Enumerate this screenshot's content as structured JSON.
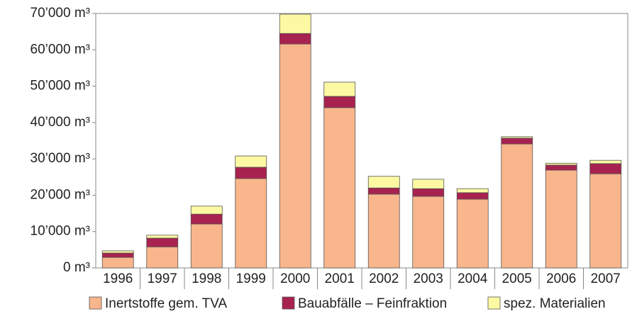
{
  "chart_data": {
    "type": "stacked_bar",
    "categories": [
      "1996",
      "1997",
      "1998",
      "1999",
      "2000",
      "2001",
      "2002",
      "2003",
      "2004",
      "2005",
      "2006",
      "2007"
    ],
    "series": [
      {
        "name": "Inertstoffe gem. TVA",
        "color": "#f9b58b",
        "values": [
          2900,
          5800,
          12100,
          24600,
          61600,
          44100,
          20300,
          19700,
          18900,
          34100,
          26900,
          25900
        ]
      },
      {
        "name": "Bauabfälle – Feinfraktion",
        "color": "#a8224f",
        "values": [
          1200,
          2400,
          2700,
          3100,
          2900,
          3100,
          1700,
          2100,
          1800,
          1600,
          1400,
          2800
        ]
      },
      {
        "name": "spez. Materialien",
        "color": "#fdf9a3",
        "values": [
          600,
          800,
          2200,
          3100,
          5300,
          3900,
          3200,
          2600,
          1100,
          400,
          500,
          900
        ]
      }
    ],
    "ylim": [
      0,
      70000
    ],
    "yticks": [
      {
        "value": 0,
        "label": "0 m³"
      },
      {
        "value": 10000,
        "label": "10’000 m³"
      },
      {
        "value": 20000,
        "label": "20’000 m³"
      },
      {
        "value": 30000,
        "label": "30’000 m³"
      },
      {
        "value": 40000,
        "label": "40’000 m³"
      },
      {
        "value": 50000,
        "label": "50’000 m³"
      },
      {
        "value": 60000,
        "label": "60’000 m³"
      },
      {
        "value": 70000,
        "label": "70’000 m³"
      }
    ],
    "legend": "bottom"
  }
}
